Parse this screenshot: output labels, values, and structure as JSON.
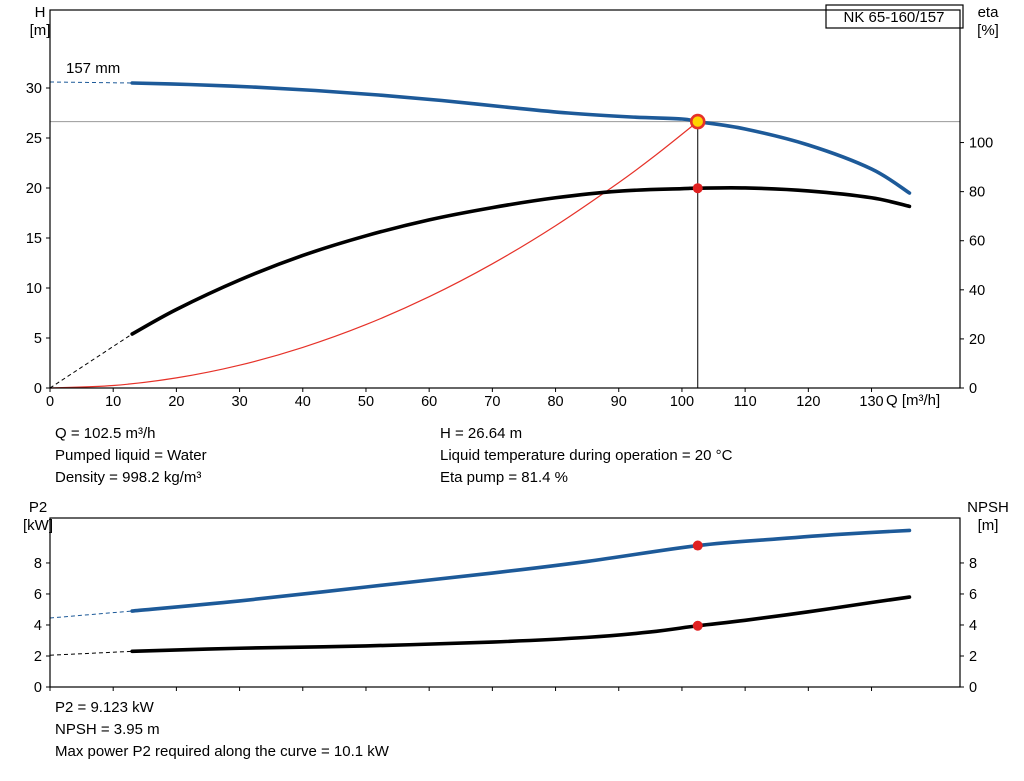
{
  "model": "NK 65-160/157",
  "colors": {
    "curve_blue": "#1d5a99",
    "curve_black": "#000000",
    "system_red": "#e63229",
    "duty_yellow": "#ffd500",
    "dot_red": "#e02020",
    "guide_gray": "#999999"
  },
  "info_top": {
    "left": [
      "Q = 102.5 m³/h",
      "Pumped liquid = Water",
      "Density = 998.2 kg/m³"
    ],
    "right": [
      "H = 26.64 m",
      "Liquid temperature during operation = 20 °C",
      "Eta pump = 81.4 %"
    ]
  },
  "info_bottom": [
    "P2 = 9.123 kW",
    "NPSH = 3.95 m",
    "Max power P2 required along the curve = 10.1 kW"
  ],
  "chart_data": [
    {
      "type": "line",
      "title": "NK 65-160/157",
      "impeller_label": "157 mm",
      "legend_position": "none",
      "grid": false,
      "x_axis": {
        "label": "Q [m³/h]",
        "min": 0,
        "max": 144,
        "ticks": [
          0,
          10,
          20,
          30,
          40,
          50,
          60,
          70,
          80,
          90,
          100,
          110,
          120,
          130
        ],
        "show_labels": true
      },
      "y_left": {
        "label": "H",
        "unit": "[m]",
        "min": 0,
        "max": 37.8,
        "ticks": [
          0,
          5,
          10,
          15,
          20,
          25,
          30
        ]
      },
      "y_right": {
        "label": "eta",
        "unit": "[%]",
        "min": 0,
        "max": 154,
        "ticks": [
          0,
          20,
          40,
          60,
          80,
          100
        ]
      },
      "series": [
        {
          "name": "system-curve",
          "axis": "left",
          "color_key": "system_red",
          "width": 1.2,
          "points": [
            [
              0,
              0
            ],
            [
              10,
              0.25
            ],
            [
              20,
              1.01
            ],
            [
              30,
              2.28
            ],
            [
              40,
              4.06
            ],
            [
              50,
              6.34
            ],
            [
              60,
              9.13
            ],
            [
              70,
              12.42
            ],
            [
              80,
              16.23
            ],
            [
              90,
              20.54
            ],
            [
              96,
              23.36
            ],
            [
              102.5,
              26.64
            ]
          ]
        },
        {
          "name": "head-curve",
          "axis": "left",
          "color_key": "curve_blue",
          "width": 3.6,
          "lead": [
            [
              0,
              30.6
            ],
            [
              13,
              30.5
            ]
          ],
          "points": [
            [
              13,
              30.5
            ],
            [
              22,
              30.35
            ],
            [
              32,
              30.1
            ],
            [
              42,
              29.75
            ],
            [
              52,
              29.3
            ],
            [
              62,
              28.75
            ],
            [
              72,
              28.1
            ],
            [
              82,
              27.5
            ],
            [
              92,
              27.1
            ],
            [
              100,
              26.9
            ],
            [
              102.5,
              26.64
            ],
            [
              110,
              25.9
            ],
            [
              120,
              24.3
            ],
            [
              130,
              21.9
            ],
            [
              136,
              19.5
            ]
          ]
        },
        {
          "name": "efficiency-curve",
          "axis": "right",
          "color_key": "curve_black",
          "width": 3.6,
          "lead": [
            [
              0,
              0
            ],
            [
              13,
              22
            ]
          ],
          "points": [
            [
              13,
              22
            ],
            [
              20,
              32
            ],
            [
              30,
              44
            ],
            [
              40,
              54
            ],
            [
              50,
              62
            ],
            [
              60,
              68.5
            ],
            [
              70,
              73.5
            ],
            [
              80,
              77.5
            ],
            [
              90,
              80.2
            ],
            [
              100,
              81.2
            ],
            [
              102.5,
              81.4
            ],
            [
              110,
              81.5
            ],
            [
              120,
              80.3
            ],
            [
              130,
              77.5
            ],
            [
              136,
              74
            ]
          ]
        }
      ],
      "guides": {
        "v_x": 102.5,
        "h_y_left": 26.64
      },
      "markers": [
        {
          "kind": "duty",
          "name": "duty-point",
          "axis": "left",
          "x": 102.5,
          "y": 26.64
        },
        {
          "kind": "dot",
          "name": "efficiency-dot",
          "axis": "right",
          "x": 102.5,
          "y": 81.4
        }
      ],
      "duty_point": {
        "Q_m3h": 102.5,
        "H_m": 26.64,
        "eta_pct": 81.4
      }
    },
    {
      "type": "line",
      "title": "",
      "grid": false,
      "x_axis": {
        "label": "",
        "min": 0,
        "max": 144,
        "ticks": [
          0,
          10,
          20,
          30,
          40,
          50,
          60,
          70,
          80,
          90,
          100,
          110,
          120,
          130
        ],
        "show_labels": false
      },
      "y_left": {
        "label": "P2",
        "unit": "[kW]",
        "min": 0,
        "max": 10.9,
        "ticks": [
          0,
          2,
          4,
          6,
          8
        ]
      },
      "y_right": {
        "label": "NPSH",
        "unit": "[m]",
        "min": 0,
        "max": 10.9,
        "ticks": [
          0,
          2,
          4,
          6,
          8
        ]
      },
      "series": [
        {
          "name": "p2-curve",
          "axis": "left",
          "color_key": "curve_blue",
          "width": 3.6,
          "lead": [
            [
              0,
              4.45
            ],
            [
              13,
              4.9
            ]
          ],
          "points": [
            [
              13,
              4.9
            ],
            [
              30,
              5.55
            ],
            [
              50,
              6.45
            ],
            [
              70,
              7.35
            ],
            [
              85,
              8.1
            ],
            [
              102.5,
              9.123
            ],
            [
              115,
              9.55
            ],
            [
              125,
              9.85
            ],
            [
              136,
              10.1
            ]
          ]
        },
        {
          "name": "npsh-curve",
          "axis": "right",
          "color_key": "curve_black",
          "width": 3.6,
          "lead": [
            [
              0,
              2.05
            ],
            [
              13,
              2.3
            ]
          ],
          "points": [
            [
              13,
              2.3
            ],
            [
              30,
              2.5
            ],
            [
              50,
              2.65
            ],
            [
              70,
              2.9
            ],
            [
              85,
              3.2
            ],
            [
              95,
              3.55
            ],
            [
              102.5,
              3.95
            ],
            [
              110,
              4.3
            ],
            [
              120,
              4.85
            ],
            [
              130,
              5.45
            ],
            [
              136,
              5.8
            ]
          ]
        }
      ],
      "markers": [
        {
          "kind": "dot",
          "name": "p2-dot",
          "axis": "left",
          "x": 102.5,
          "y": 9.123
        },
        {
          "kind": "dot",
          "name": "npsh-dot",
          "axis": "right",
          "x": 102.5,
          "y": 3.95
        }
      ],
      "duty_point": {
        "P2_kW": 9.123,
        "NPSH_m": 3.95
      }
    }
  ]
}
